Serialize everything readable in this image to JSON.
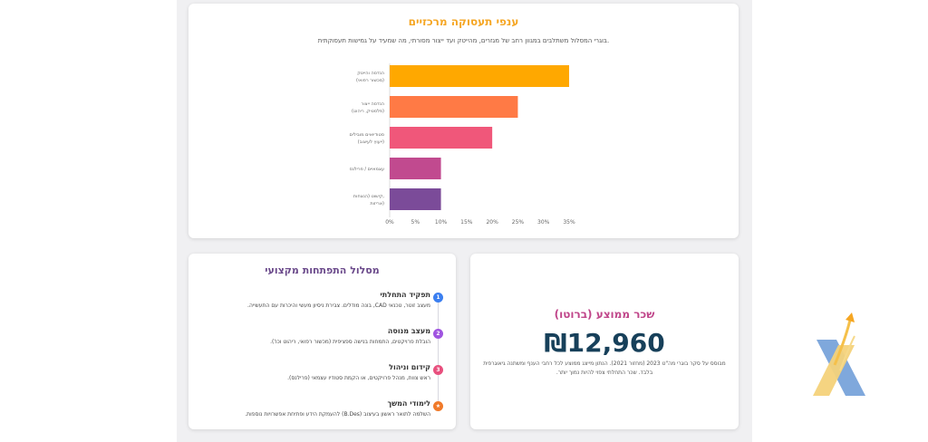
{
  "employment": {
    "title": "ענפי תעסוקה מרכזיים",
    "subtitle": "בוגרי המסלול משתלבים במגוון רחב של מגזרים, מהייטק ועד ייצור מסורתי, מה שמעיד על גמישות תעסוקתית."
  },
  "chart_data": {
    "type": "bar",
    "orientation": "horizontal",
    "categories": [
      [
        "הנדסה והייטק",
        "(מכשור רפואי)"
      ],
      [
        "הנדסה ייצור",
        "(פלסטיק, ריהוט)"
      ],
      [
        "סטודיואים מובילים",
        "(ייעוץ לעיצוב)"
      ],
      [
        "עצמאיים / פרילנס"
      ],
      [
        "קישוט (הנצחות,",
        "אריזות)"
      ]
    ],
    "values": [
      35,
      25,
      20,
      10,
      10
    ],
    "colors": [
      "#ffa800",
      "#ff7a45",
      "#f0577a",
      "#c14a8f",
      "#7b4b99"
    ],
    "xticks": [
      "0%",
      "5%",
      "10%",
      "15%",
      "20%",
      "25%",
      "30%",
      "35%"
    ],
    "xlim": [
      0,
      35
    ]
  },
  "career_path": {
    "title": "מסלול התפתחות מקצועי",
    "steps": [
      {
        "title": "תפקיד התחלתי",
        "desc": "מעצב זוטר, טכנאי CAD, בונה מודלים. צבירת ניסיון מעשי והיכרות עם התעשייה.",
        "badge": "1",
        "color": "#3b7ff0"
      },
      {
        "title": "מעצב מנוסה",
        "desc": "הובלת פרויקטים, התמחות בנישה ספציפית (מכשור רפואי, ריהוט וכו').",
        "badge": "2",
        "color": "#a055e0"
      },
      {
        "title": "קידום וניהול",
        "desc": "ראש צוות, מנהל פרויקטים, או הקמת סטודיו עצמאי (פרילנס).",
        "badge": "3",
        "color": "#e8507e"
      },
      {
        "title": "לימודי המשך",
        "desc": "השלמה לתואר ראשון בעיצוב (B.Des) להעמקת הידע ופתיחת אפשרויות נוספות.",
        "badge": "★",
        "color": "#f07a2a"
      }
    ]
  },
  "salary": {
    "title": "שכר ממוצע (ברוטו)",
    "value": "₪12,960",
    "note_line1": "מבוסס על סקר בוגרי מה\"ט 2023 (מחזור 2021). הנתון מייצג ממוצע לכל רחבי הענף ומשתנה גיאוגרפית",
    "note_line2": "בלבד. שכר התחלתי צפוי להיות נמוך יותר."
  }
}
